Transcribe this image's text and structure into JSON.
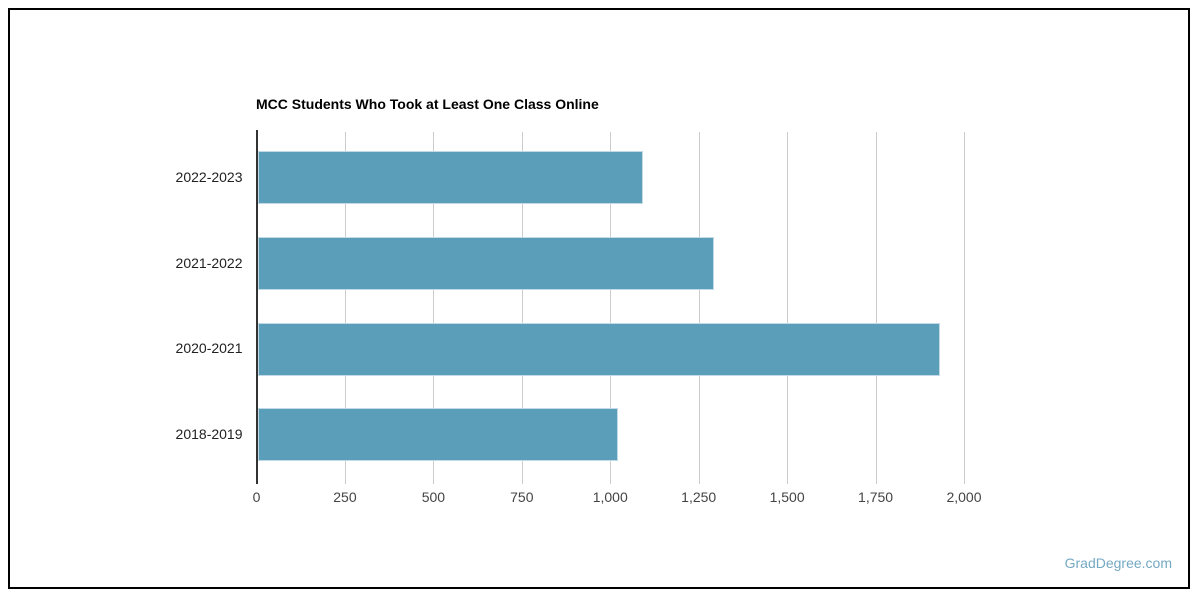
{
  "page": {
    "watermark": "GradDegree.com",
    "watermark_color": "#74A9C4"
  },
  "chart_data": {
    "type": "bar",
    "orientation": "horizontal",
    "title": "MCC Students Who Took at Least One Class Online",
    "categories": [
      "2022-2023",
      "2021-2022",
      "2020-2021",
      "2018-2019"
    ],
    "values": [
      1090,
      1290,
      1930,
      1020
    ],
    "xlabel": "",
    "ylabel": "",
    "xlim": [
      0,
      2000
    ],
    "xticks": [
      0,
      250,
      500,
      750,
      1000,
      1250,
      1500,
      1750,
      2000
    ],
    "xtick_labels": [
      "0",
      "250",
      "500",
      "750",
      "1,000",
      "1,250",
      "1,500",
      "1,750",
      "2,000"
    ],
    "grid": true,
    "legend": "none",
    "bar_color": "#5B9EBA",
    "gridline_color": "#cccccc",
    "axis_line_color": "#333333",
    "tick_label_color": "#444444",
    "category_label_color": "#212121"
  }
}
